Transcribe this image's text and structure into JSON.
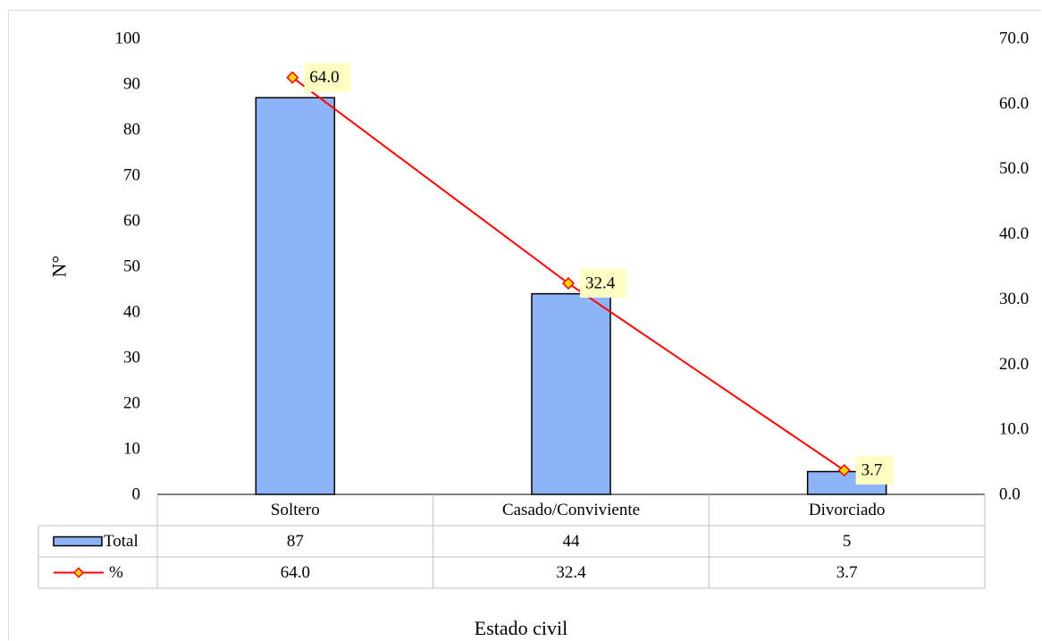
{
  "chart_data": {
    "type": "bar",
    "categories": [
      "Soltero",
      "Casado/Conviviente",
      "Divorciado"
    ],
    "series": [
      {
        "name": "Total",
        "type": "bar",
        "axis": "left",
        "values": [
          87,
          44,
          5
        ],
        "color": "#8db4f7"
      },
      {
        "name": "%",
        "type": "line",
        "axis": "right",
        "values": [
          64.0,
          32.4,
          3.7
        ],
        "color": "#ff0000",
        "marker_color": "#ffd700"
      }
    ],
    "data_labels": [
      "64.0",
      "32.4",
      "3.7"
    ],
    "table_rows": [
      {
        "label": "Total",
        "cells": [
          "87",
          "44",
          "5"
        ]
      },
      {
        "label": "%",
        "cells": [
          "64.0",
          "32.4",
          "3.7"
        ]
      }
    ],
    "xlabel": "Estado civil",
    "ylabel": "N°",
    "ylim": [
      0,
      100
    ],
    "y_ticks": [
      "0",
      "10",
      "20",
      "30",
      "40",
      "50",
      "60",
      "70",
      "80",
      "90",
      "100"
    ],
    "y2lim": [
      0,
      70
    ],
    "y2_ticks": [
      "0.0",
      "10.0",
      "20.0",
      "30.0",
      "40.0",
      "50.0",
      "60.0",
      "70.0"
    ],
    "grid": false,
    "legend": "data-table"
  }
}
